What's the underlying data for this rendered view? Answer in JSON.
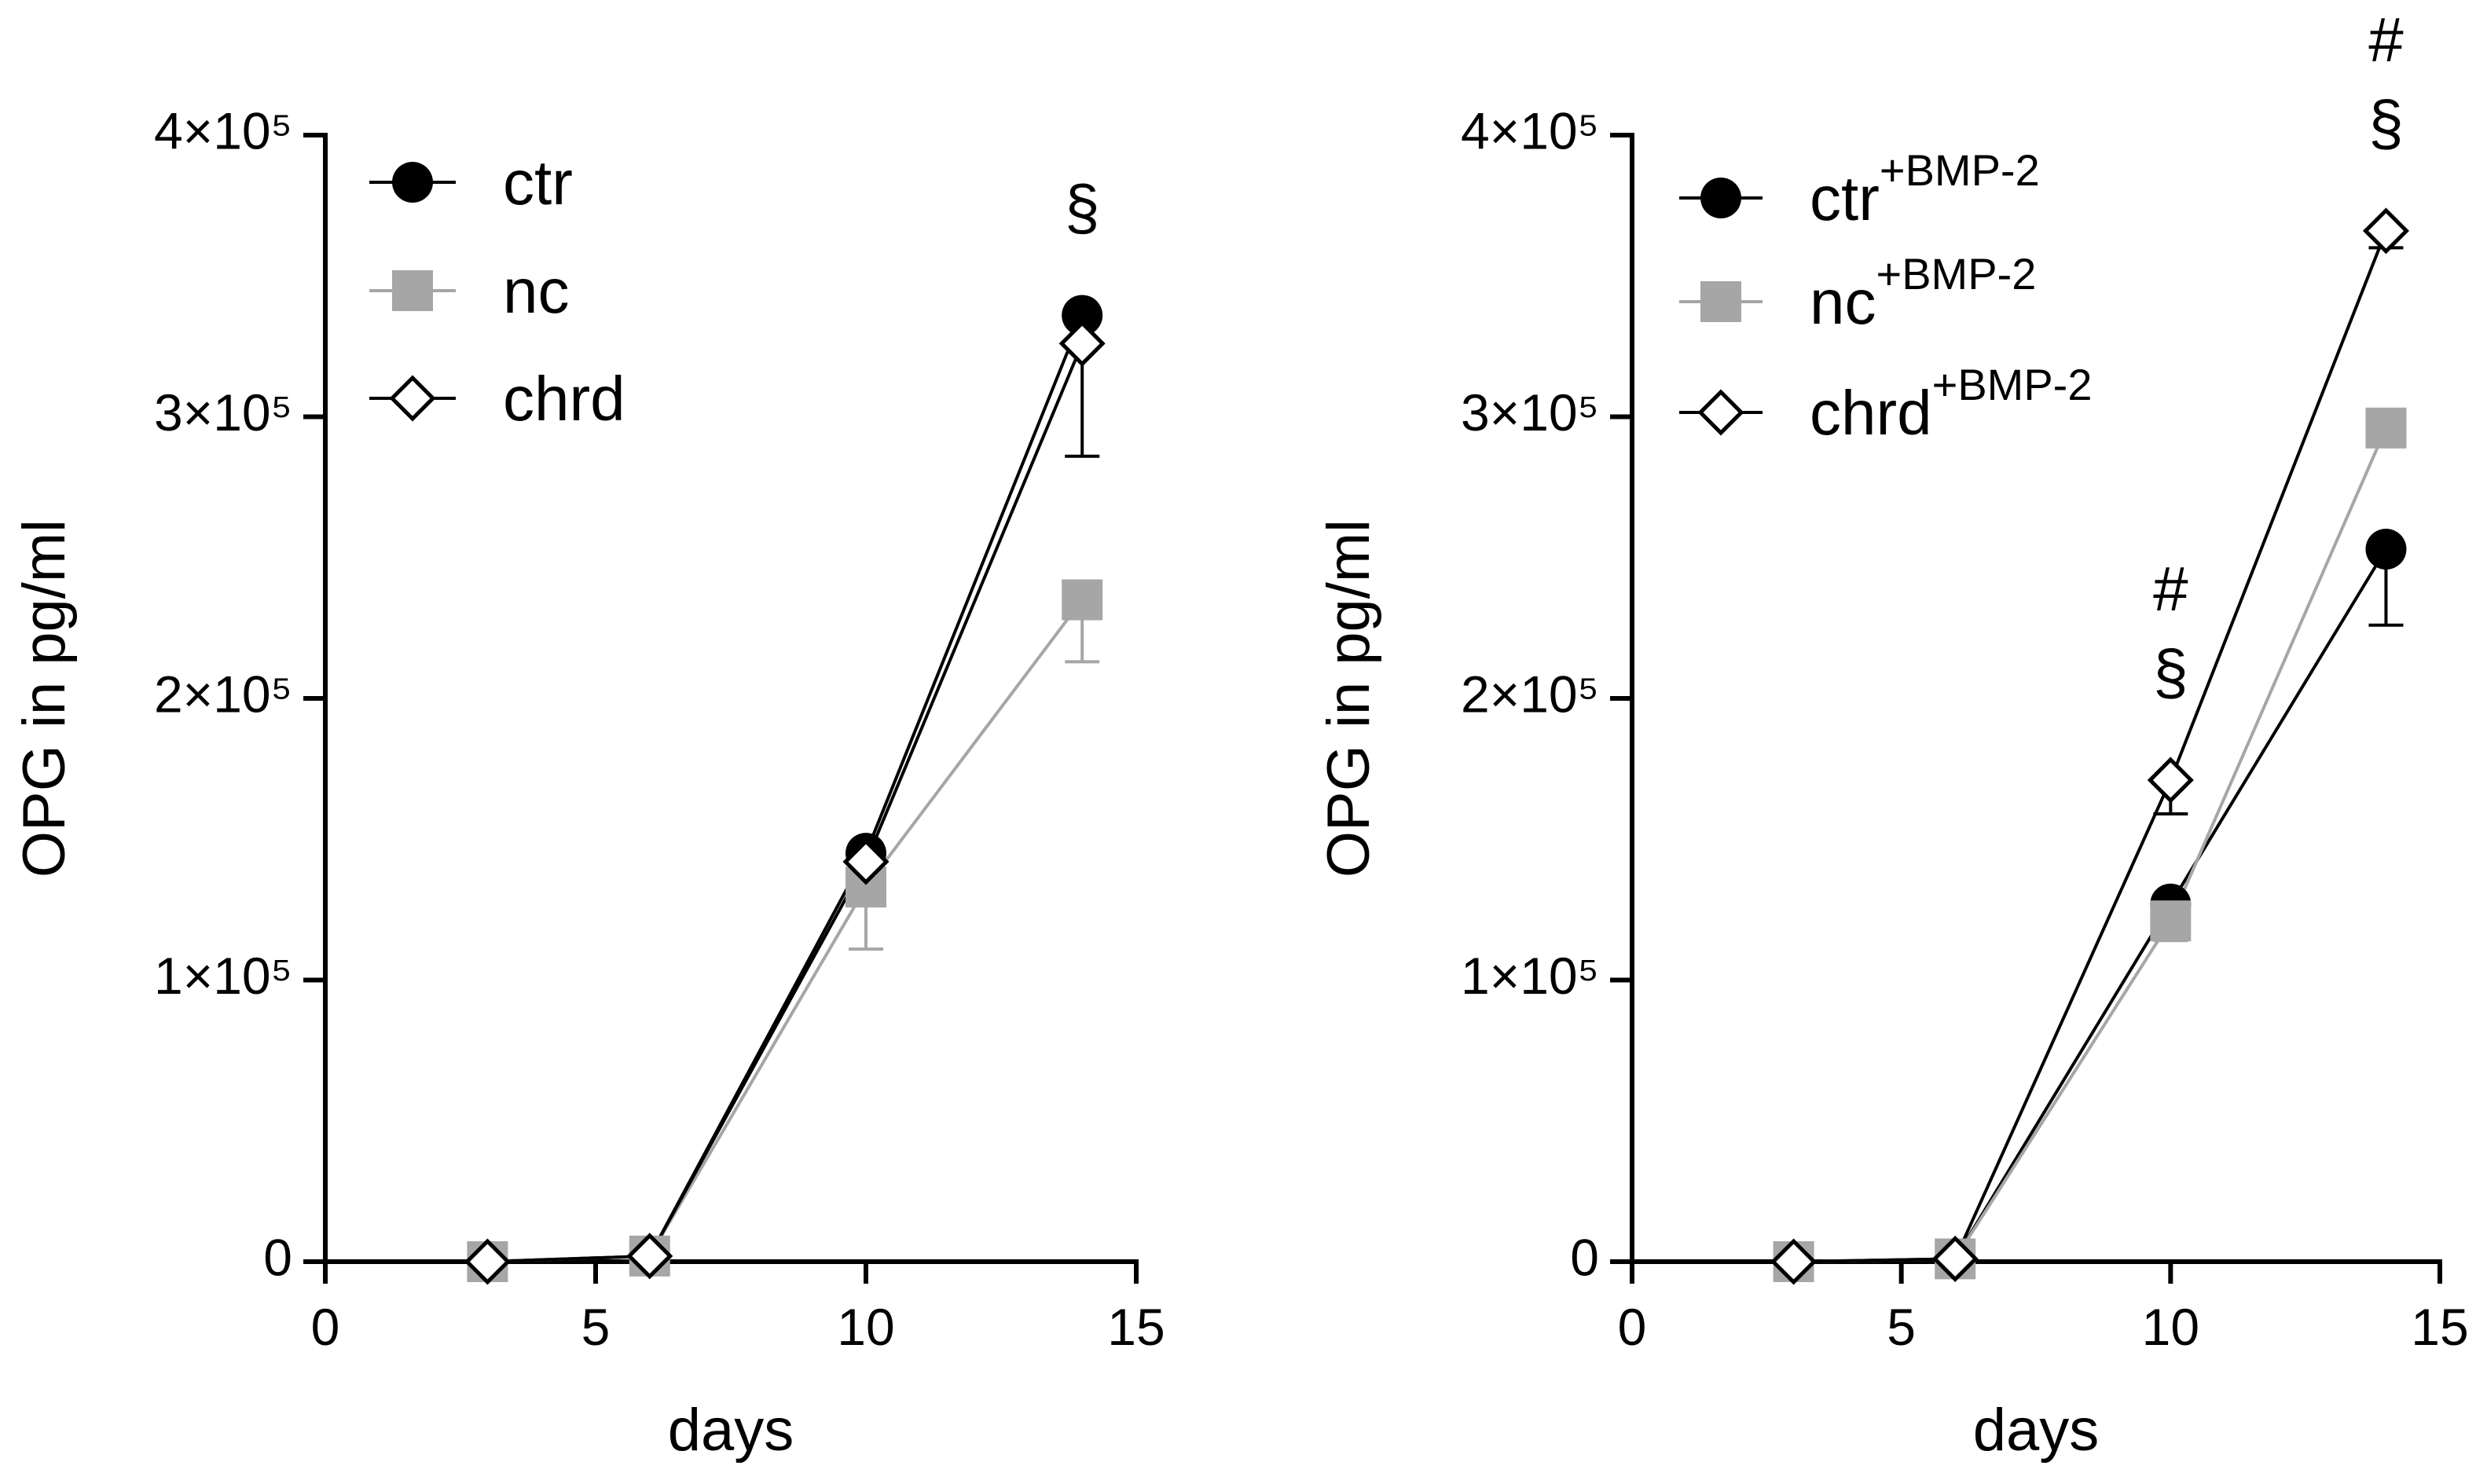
{
  "chart_data": [
    {
      "type": "line",
      "xlabel": "days",
      "ylabel": "OPG in pg/ml",
      "x": [
        3,
        6,
        10,
        14
      ],
      "xlim": [
        0,
        15
      ],
      "xticks": [
        0,
        5,
        10,
        15
      ],
      "ylim": [
        0,
        400000
      ],
      "yticks": [
        0,
        {
          "value": 100000,
          "label": "1×10⁵"
        },
        {
          "value": 200000,
          "label": "2×10⁵"
        },
        {
          "value": 300000,
          "label": "3×10⁵"
        },
        {
          "value": 400000,
          "label": "4×10⁵"
        }
      ],
      "series": [
        {
          "name": "ctr",
          "color": "#000000",
          "marker": "circle",
          "values": [
            0,
            2000,
            145000,
            336000
          ],
          "errors": [
            0,
            0,
            0,
            0
          ]
        },
        {
          "name": "nc",
          "color": "#a6a6a6",
          "marker": "square",
          "values": [
            0,
            2000,
            133000,
            235000
          ],
          "errors": [
            0,
            0,
            22000,
            22000
          ]
        },
        {
          "name": "chrd",
          "color": "#000000",
          "marker": "diamond",
          "values": [
            0,
            2000,
            142000,
            326000
          ],
          "errors": [
            0,
            0,
            0,
            40000
          ]
        }
      ],
      "annotations": [
        {
          "x": 14,
          "lines": [
            "§"
          ]
        }
      ]
    },
    {
      "type": "line",
      "xlabel": "days",
      "ylabel": "OPG in pg/ml",
      "x": [
        3,
        6,
        10,
        14
      ],
      "xlim": [
        0,
        15
      ],
      "xticks": [
        0,
        5,
        10,
        15
      ],
      "ylim": [
        0,
        400000
      ],
      "yticks": [
        0,
        {
          "value": 100000,
          "label": "1×10⁵"
        },
        {
          "value": 200000,
          "label": "2×10⁵"
        },
        {
          "value": 300000,
          "label": "3×10⁵"
        },
        {
          "value": 400000,
          "label": "4×10⁵"
        }
      ],
      "series": [
        {
          "name": "ctr",
          "superscript": "+BMP-2",
          "color": "#000000",
          "marker": "circle",
          "values": [
            0,
            1000,
            127000,
            253000
          ],
          "errors": [
            0,
            0,
            0,
            27000
          ]
        },
        {
          "name": "nc",
          "superscript": "+BMP-2",
          "color": "#a6a6a6",
          "marker": "square",
          "values": [
            0,
            1000,
            121000,
            296000
          ],
          "errors": [
            0,
            0,
            7000,
            0
          ]
        },
        {
          "name": "chrd",
          "superscript": "+BMP-2",
          "color": "#000000",
          "marker": "diamond",
          "values": [
            0,
            1000,
            171000,
            366000
          ],
          "errors": [
            0,
            0,
            12000,
            6000
          ]
        }
      ],
      "annotations": [
        {
          "x": 10,
          "lines": [
            "#",
            "§"
          ]
        },
        {
          "x": 14,
          "lines": [
            "#",
            "§"
          ]
        }
      ]
    }
  ]
}
